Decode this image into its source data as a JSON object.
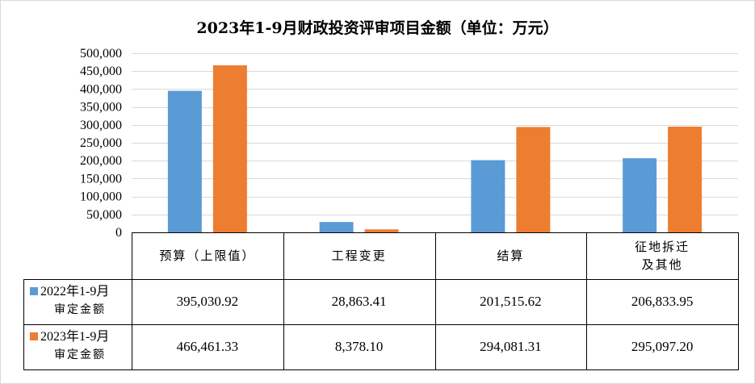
{
  "chart_data": {
    "type": "bar",
    "title": "2023年1-9月财政投资评审项目金额（单位：万元）",
    "categories": [
      "预算（上限值）",
      "工程变更",
      "结算",
      "征地拆迁及其他"
    ],
    "category_lines": [
      [
        "预算（上限值）"
      ],
      [
        "工程变更"
      ],
      [
        "结算"
      ],
      [
        "征地拆迁",
        "及其他"
      ]
    ],
    "series": [
      {
        "name": "2022年1-9月审定金额",
        "name_line1": "2022年1-9月",
        "name_line2": "审定金额",
        "color": "#5b9bd5",
        "values": [
          395030.92,
          28863.41,
          201515.62,
          206833.95
        ],
        "labels": [
          "395,030.92",
          "28,863.41",
          "201,515.62",
          "206,833.95"
        ]
      },
      {
        "name": "2023年1-9月审定金额",
        "name_line1": "2023年1-9月",
        "name_line2": "审定金额",
        "color": "#ed7d31",
        "values": [
          466461.33,
          8378.1,
          294081.31,
          295097.2
        ],
        "labels": [
          "466,461.33",
          "8,378.10",
          "294,081.31",
          "295,097.20"
        ]
      }
    ],
    "ylim": [
      0,
      500000
    ],
    "ytick_values": [
      0,
      50000,
      100000,
      150000,
      200000,
      250000,
      300000,
      350000,
      400000,
      450000,
      500000
    ],
    "ytick_labels": [
      "0",
      "50,000",
      "100,000",
      "150,000",
      "200,000",
      "250,000",
      "300,000",
      "350,000",
      "400,000",
      "450,000",
      "500,000"
    ],
    "grid": true,
    "legend": "data-table"
  }
}
